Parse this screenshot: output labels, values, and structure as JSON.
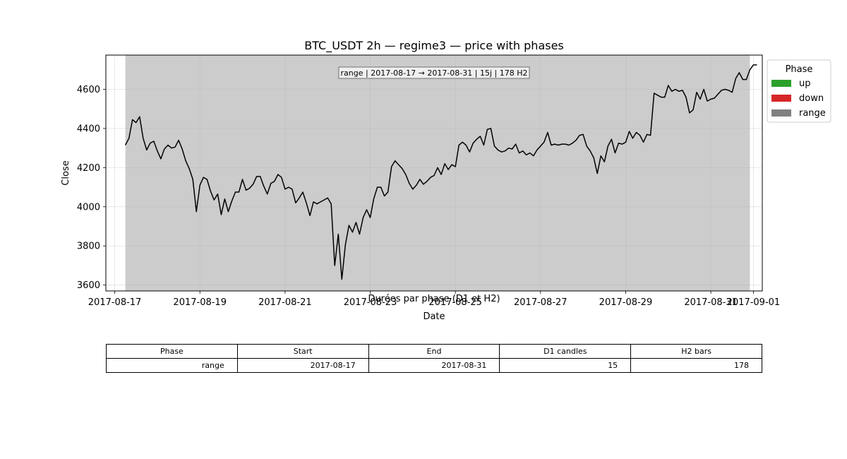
{
  "chart_data": {
    "type": "line",
    "title": "BTC_USDT 2h — regime3 — price with phases",
    "xlabel": "Date",
    "ylabel": "Close",
    "x_range": [
      "2016-08-16T19:00",
      "2017-09-01T05:00"
    ],
    "ylim": [
      3570,
      4775
    ],
    "x_ticks": [
      "2017-08-17",
      "2017-08-19",
      "2017-08-21",
      "2017-08-23",
      "2017-08-25",
      "2017-08-27",
      "2017-08-29",
      "2017-08-31",
      "2017-09-01"
    ],
    "y_ticks": [
      3600,
      3800,
      4000,
      4200,
      4400,
      4600
    ],
    "grid": true,
    "legend": {
      "title": "Phase",
      "position": "outside-right",
      "entries": [
        {
          "label": "up",
          "color": "#2ca02c"
        },
        {
          "label": "down",
          "color": "#d62728"
        },
        {
          "label": "range",
          "color": "#808080"
        }
      ]
    },
    "phases": [
      {
        "phase": "range",
        "start": "2017-08-17T06:00",
        "end": "2017-08-31T22:00",
        "color": "#808080"
      }
    ],
    "annotation": "range | 2017-08-17 → 2017-08-31 | 15j | 178 H2",
    "line_color": "#000000",
    "series": [
      {
        "x_start": "2017-08-17T06:00",
        "x_step_hours": 2,
        "values": [
          4315,
          4350,
          4445,
          4430,
          4460,
          4350,
          4290,
          4325,
          4335,
          4285,
          4245,
          4295,
          4315,
          4300,
          4305,
          4340,
          4295,
          4235,
          4195,
          4140,
          3975,
          4110,
          4150,
          4140,
          4080,
          4035,
          4065,
          3960,
          4040,
          3975,
          4030,
          4075,
          4075,
          4140,
          4085,
          4095,
          4115,
          4155,
          4155,
          4105,
          4065,
          4120,
          4130,
          4165,
          4150,
          4090,
          4100,
          4090,
          4020,
          4045,
          4075,
          4020,
          3955,
          4025,
          4015,
          4025,
          4035,
          4045,
          4015,
          3700,
          3860,
          3630,
          3805,
          3905,
          3870,
          3920,
          3860,
          3945,
          3985,
          3945,
          4040,
          4100,
          4100,
          4055,
          4075,
          4205,
          4235,
          4215,
          4195,
          4165,
          4120,
          4090,
          4110,
          4140,
          4115,
          4130,
          4150,
          4160,
          4200,
          4165,
          4220,
          4190,
          4215,
          4205,
          4315,
          4330,
          4315,
          4280,
          4325,
          4345,
          4360,
          4315,
          4395,
          4400,
          4310,
          4290,
          4280,
          4285,
          4300,
          4295,
          4320,
          4275,
          4285,
          4265,
          4275,
          4260,
          4290,
          4310,
          4330,
          4380,
          4315,
          4320,
          4315,
          4320,
          4320,
          4315,
          4325,
          4340,
          4365,
          4370,
          4310,
          4285,
          4250,
          4170,
          4260,
          4230,
          4310,
          4345,
          4275,
          4325,
          4320,
          4330,
          4385,
          4350,
          4380,
          4365,
          4330,
          4370,
          4365,
          4580,
          4570,
          4560,
          4560,
          4620,
          4590,
          4600,
          4590,
          4595,
          4560,
          4480,
          4495,
          4585,
          4550,
          4600,
          4540,
          4550,
          4555,
          4575,
          4595,
          4600,
          4595,
          4585,
          4655,
          4685,
          4650,
          4650,
          4700,
          4725,
          4725
        ]
      }
    ]
  },
  "table": {
    "title": "Durées par phase (D1 et H2)",
    "headers": [
      "Phase",
      "Start",
      "End",
      "D1 candles",
      "H2 bars"
    ],
    "rows": [
      [
        "range",
        "2017-08-17",
        "2017-08-31",
        "15",
        "178"
      ]
    ]
  }
}
